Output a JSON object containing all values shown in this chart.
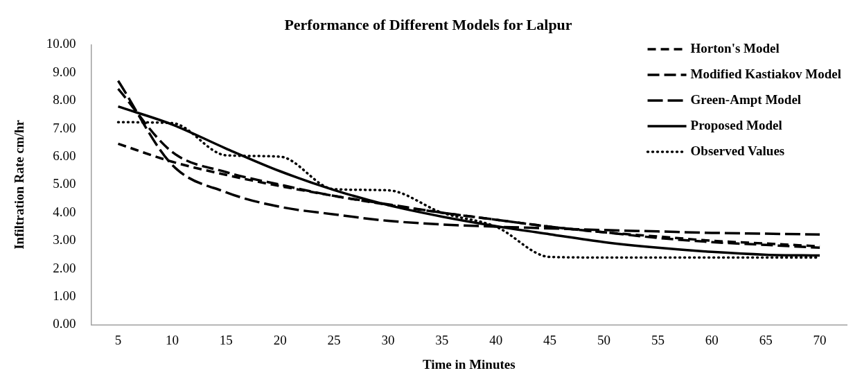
{
  "chart_data": {
    "type": "line",
    "title": "Performance of Different Models for Lalpur",
    "xlabel": "Time in Minutes",
    "ylabel": "Infiltration Rate cm/hr",
    "categories": [
      "5",
      "10",
      "15",
      "20",
      "25",
      "30",
      "35",
      "40",
      "45",
      "50",
      "55",
      "60",
      "65",
      "70"
    ],
    "series": [
      {
        "name": "Horton's Model",
        "color": "#000000",
        "line_style": "dashed",
        "values": [
          6.46,
          5.82,
          5.35,
          4.95,
          4.6,
          4.28,
          4.0,
          3.75,
          3.5,
          3.3,
          3.15,
          3.0,
          2.9,
          2.8
        ]
      },
      {
        "name": "Modified Kastiakov Model",
        "color": "#000000",
        "line_style": "dashed",
        "values": [
          8.42,
          6.17,
          5.45,
          5.0,
          4.6,
          4.3,
          4.0,
          3.75,
          3.5,
          3.3,
          3.1,
          2.95,
          2.85,
          2.75
        ]
      },
      {
        "name": "Green-Ampt Model",
        "color": "#000000",
        "line_style": "dashed",
        "values": [
          8.71,
          5.71,
          4.73,
          4.21,
          3.94,
          3.71,
          3.58,
          3.5,
          3.44,
          3.38,
          3.33,
          3.28,
          3.25,
          3.22
        ]
      },
      {
        "name": "Proposed Model",
        "color": "#000000",
        "line_style": "solid",
        "values": [
          7.79,
          7.15,
          6.29,
          5.48,
          4.81,
          4.27,
          3.86,
          3.52,
          3.23,
          2.95,
          2.75,
          2.6,
          2.5,
          2.47
        ]
      },
      {
        "name": "Observed Values",
        "color": "#000000",
        "line_style": "dotted",
        "values": [
          7.23,
          7.2,
          6.05,
          6.0,
          4.84,
          4.8,
          4.0,
          3.5,
          2.42,
          2.4,
          2.4,
          2.4,
          2.4,
          2.4
        ]
      }
    ],
    "ylim": [
      0,
      10
    ],
    "yticks": [
      {
        "value": 0,
        "label": "0.00"
      },
      {
        "value": 1,
        "label": "1.00"
      },
      {
        "value": 2,
        "label": "2.00"
      },
      {
        "value": 3,
        "label": "3.00"
      },
      {
        "value": 4,
        "label": "4.00"
      },
      {
        "value": 5,
        "label": "5.00"
      },
      {
        "value": 6,
        "label": "6.00"
      },
      {
        "value": 7,
        "label": "7.00"
      },
      {
        "value": 8,
        "label": "8.00"
      },
      {
        "value": 9,
        "label": "9.00"
      },
      {
        "value": 10,
        "label": "10.00"
      }
    ],
    "legend": "top right",
    "marker": "none"
  }
}
